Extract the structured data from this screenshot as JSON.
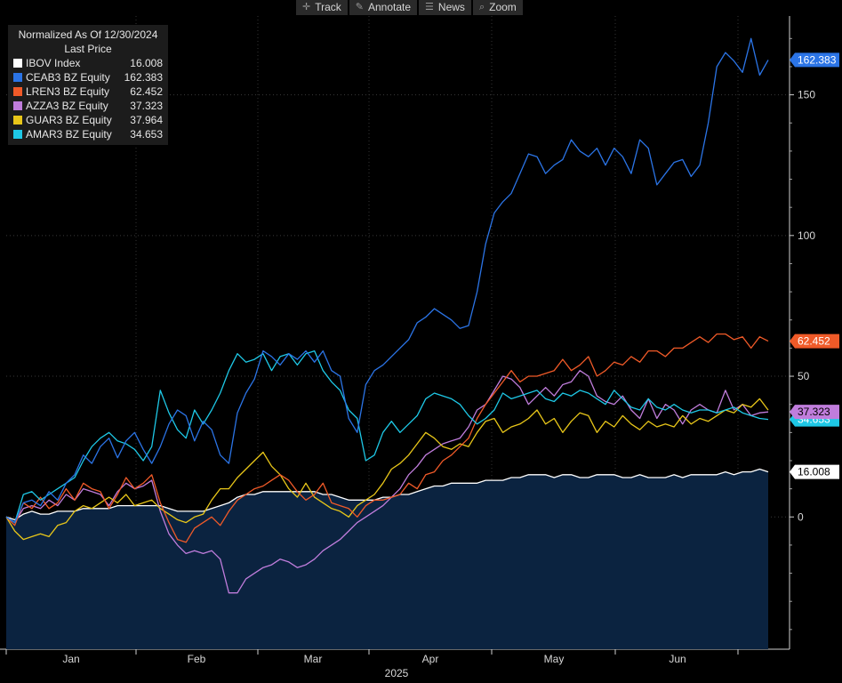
{
  "toolbar": {
    "items": [
      {
        "label": "Track",
        "icon": "crosshair-icon",
        "glyph": "✛"
      },
      {
        "label": "Annotate",
        "icon": "pencil-icon",
        "glyph": "✎"
      },
      {
        "label": "News",
        "icon": "news-icon",
        "glyph": "☰"
      },
      {
        "label": "Zoom",
        "icon": "zoom-icon",
        "glyph": "⌕"
      }
    ]
  },
  "legend": {
    "title": "Normalized As Of 12/30/2024",
    "subtitle": "Last Price"
  },
  "chart_data": {
    "type": "line",
    "xlabel": "2025",
    "x_ticks": [
      "Jan",
      "Feb",
      "Mar",
      "Apr",
      "May",
      "Jun"
    ],
    "y_ticks": [
      0,
      50,
      100,
      150
    ],
    "ylim": [
      -47,
      178
    ],
    "grid": true,
    "legend_placement": "top-left",
    "series": [
      {
        "name": "CEAB3 BZ Equity",
        "last": "162.383",
        "color": "#2b74e6",
        "label_text": "#ffffff",
        "values": [
          0,
          -2,
          5,
          6,
          4,
          9,
          6,
          12,
          15,
          22,
          19,
          25,
          28,
          21,
          27,
          30,
          24,
          19,
          25,
          33,
          38,
          36,
          27,
          34,
          31,
          22,
          19,
          37,
          44,
          49,
          59,
          57,
          54,
          58,
          56,
          59,
          55,
          59,
          52,
          50,
          35,
          30,
          47,
          52,
          54,
          57,
          60,
          63,
          69,
          71,
          74,
          72,
          70,
          67,
          68,
          80,
          97,
          108,
          112,
          115,
          122,
          129,
          128,
          122,
          125,
          127,
          134,
          130,
          128,
          131,
          125,
          131,
          128,
          122,
          134,
          131,
          118,
          122,
          126,
          127,
          121,
          125,
          140,
          160,
          165,
          162,
          158,
          170,
          157,
          162.383
        ]
      },
      {
        "name": "LREN3 BZ Equity",
        "last": "62.452",
        "color": "#f05a28",
        "label_text": "#ffffff",
        "values": [
          0,
          -3,
          5,
          3,
          7,
          3,
          5,
          10,
          6,
          12,
          10,
          9,
          3,
          8,
          14,
          10,
          12,
          15,
          5,
          -2,
          -8,
          -9,
          -4,
          -2,
          0,
          -3,
          2,
          6,
          8,
          10,
          11,
          13,
          15,
          13,
          9,
          6,
          8,
          12,
          5,
          4,
          3,
          0,
          4,
          6,
          6,
          7,
          8,
          12,
          10,
          15,
          16,
          20,
          22,
          25,
          28,
          35,
          40,
          44,
          48,
          52,
          48,
          50,
          50,
          51,
          52,
          56,
          52,
          54,
          57,
          50,
          52,
          55,
          54,
          57,
          55,
          59,
          59,
          57,
          60,
          60,
          62,
          64,
          62,
          65,
          65,
          63,
          64,
          60,
          64,
          62.452
        ]
      },
      {
        "name": "AZZA3 BZ Equity",
        "last": "37.323",
        "color": "#c07ddc",
        "label_text": "#000000",
        "values": [
          0,
          -2,
          3,
          4,
          3,
          6,
          4,
          8,
          6,
          10,
          9,
          8,
          4,
          9,
          12,
          10,
          11,
          13,
          2,
          -6,
          -10,
          -13,
          -12,
          -13,
          -12,
          -15,
          -27,
          -27,
          -22,
          -20,
          -18,
          -17,
          -15,
          -16,
          -18,
          -17,
          -15,
          -12,
          -10,
          -8,
          -5,
          -2,
          0,
          2,
          4,
          7,
          10,
          15,
          18,
          22,
          24,
          26,
          27,
          28,
          32,
          38,
          40,
          45,
          50,
          49,
          46,
          40,
          43,
          46,
          43,
          47,
          48,
          52,
          50,
          43,
          41,
          40,
          43,
          38,
          35,
          42,
          35,
          40,
          38,
          33,
          38,
          40,
          38,
          37,
          45,
          38,
          40,
          36,
          37,
          37.323
        ]
      },
      {
        "name": "GUAR3 BZ Equity",
        "last": "37.964",
        "color": "#e8c619",
        "label_text": "#000000",
        "values": [
          0,
          -5,
          -8,
          -7,
          -6,
          -7,
          -3,
          -2,
          2,
          4,
          3,
          5,
          7,
          5,
          8,
          4,
          5,
          6,
          3,
          1,
          -1,
          -2,
          0,
          1,
          6,
          10,
          10,
          14,
          17,
          20,
          23,
          18,
          15,
          10,
          7,
          12,
          7,
          5,
          3,
          2,
          0,
          4,
          6,
          8,
          12,
          17,
          19,
          22,
          26,
          30,
          28,
          25,
          24,
          26,
          25,
          30,
          34,
          35,
          30,
          32,
          33,
          35,
          38,
          33,
          35,
          30,
          34,
          37,
          36,
          30,
          34,
          32,
          36,
          33,
          31,
          34,
          32,
          33,
          32,
          36,
          33,
          35,
          34,
          36,
          38,
          37,
          40,
          39,
          42,
          37.964
        ]
      },
      {
        "name": "AMAR3 BZ Equity",
        "last": "34.653",
        "color": "#1ec8e6",
        "label_text": "#ffffff",
        "values": [
          0,
          -2,
          8,
          9,
          6,
          8,
          10,
          12,
          14,
          20,
          25,
          28,
          30,
          27,
          26,
          24,
          20,
          25,
          45,
          37,
          31,
          28,
          38,
          33,
          38,
          44,
          52,
          58,
          55,
          56,
          58,
          52,
          57,
          58,
          54,
          58,
          59,
          52,
          48,
          45,
          38,
          35,
          20,
          22,
          30,
          34,
          30,
          33,
          36,
          42,
          44,
          43,
          42,
          40,
          36,
          33,
          35,
          38,
          44,
          42,
          43,
          44,
          45,
          42,
          41,
          44,
          43,
          45,
          44,
          42,
          40,
          45,
          42,
          39,
          38,
          42,
          39,
          38,
          40,
          38,
          37,
          38,
          38,
          37,
          38,
          39,
          37,
          36,
          35,
          34.653
        ]
      },
      {
        "name": "IBOV Index",
        "last": "16.008",
        "color": "#ffffff",
        "label_text": "#000000",
        "area_fill": "#0b2340",
        "values": [
          0,
          -1,
          1,
          2,
          1,
          1,
          2,
          2,
          2,
          3,
          3,
          3,
          3,
          4,
          4,
          4,
          4,
          4,
          4,
          3,
          2,
          2,
          2,
          2,
          3,
          4,
          5,
          7,
          8,
          8,
          9,
          9,
          9,
          9,
          9,
          9,
          9,
          8,
          8,
          7,
          6,
          6,
          6,
          6,
          7,
          7,
          8,
          8,
          9,
          10,
          11,
          11,
          12,
          12,
          12,
          12,
          13,
          13,
          13,
          14,
          14,
          15,
          15,
          15,
          14,
          15,
          15,
          14,
          14,
          15,
          15,
          15,
          14,
          14,
          15,
          14,
          14,
          14,
          15,
          14,
          15,
          15,
          15,
          15,
          16,
          15,
          16,
          16,
          17,
          16.008
        ]
      }
    ]
  }
}
